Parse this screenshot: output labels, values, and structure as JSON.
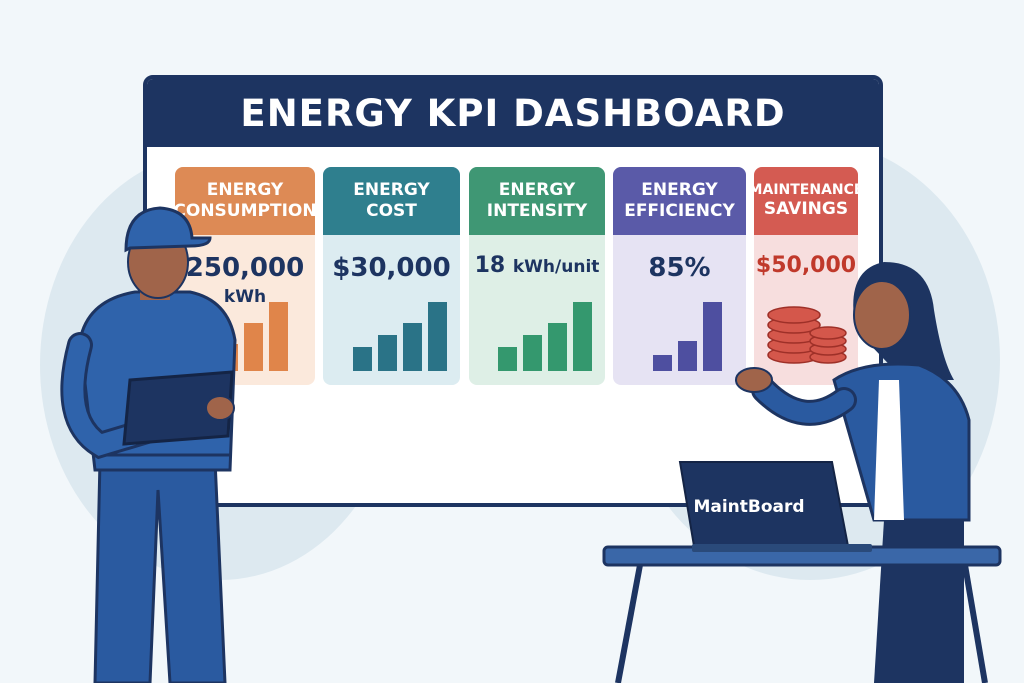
{
  "dashboard": {
    "title": "ENERGY KPI DASHBOARD",
    "cards": [
      {
        "line1": "ENERGY",
        "line2": "CONSUMPTION",
        "value": "250,000",
        "unit": "kWh",
        "bar_levels": [
          0.34,
          0.6,
          0.86
        ],
        "color": "#dd8a55",
        "bg": "#fbe9dc",
        "bar": "#e0854a"
      },
      {
        "line1": "ENERGY",
        "line2": "COST",
        "value": "$30,000",
        "unit": "",
        "bar_levels": [
          0.3,
          0.45,
          0.6,
          0.86
        ],
        "color": "#2f7f8e",
        "bg": "#dcecf1",
        "bar": "#2a7387"
      },
      {
        "line1": "ENERGY",
        "line2": "INTENSITY",
        "value": "18",
        "unit": "kWh/unit",
        "bar_levels": [
          0.3,
          0.45,
          0.6,
          0.86
        ],
        "color": "#3f9774",
        "bg": "#deefe6",
        "bar": "#34986e"
      },
      {
        "line1": "ENERGY",
        "line2": "EFFICIENCY",
        "value": "85%",
        "unit": "",
        "bar_levels": [
          0.2,
          0.38,
          0.86
        ],
        "color": "#5a5aa8",
        "bg": "#e6e3f3",
        "bar": "#4e4fa0"
      },
      {
        "line1": "MAINTENANCE",
        "line2": "SAVINGS",
        "value": "$50,000",
        "unit": "",
        "bar_levels": [],
        "color": "#d45b52",
        "bg": "#f7dede",
        "bar": "#c95048"
      }
    ]
  },
  "laptop": {
    "label": "MaintBoard"
  },
  "colors": {
    "navy": "#1d3461",
    "worker_blue": "#2f5fa6",
    "background": "#f2f7fa"
  }
}
